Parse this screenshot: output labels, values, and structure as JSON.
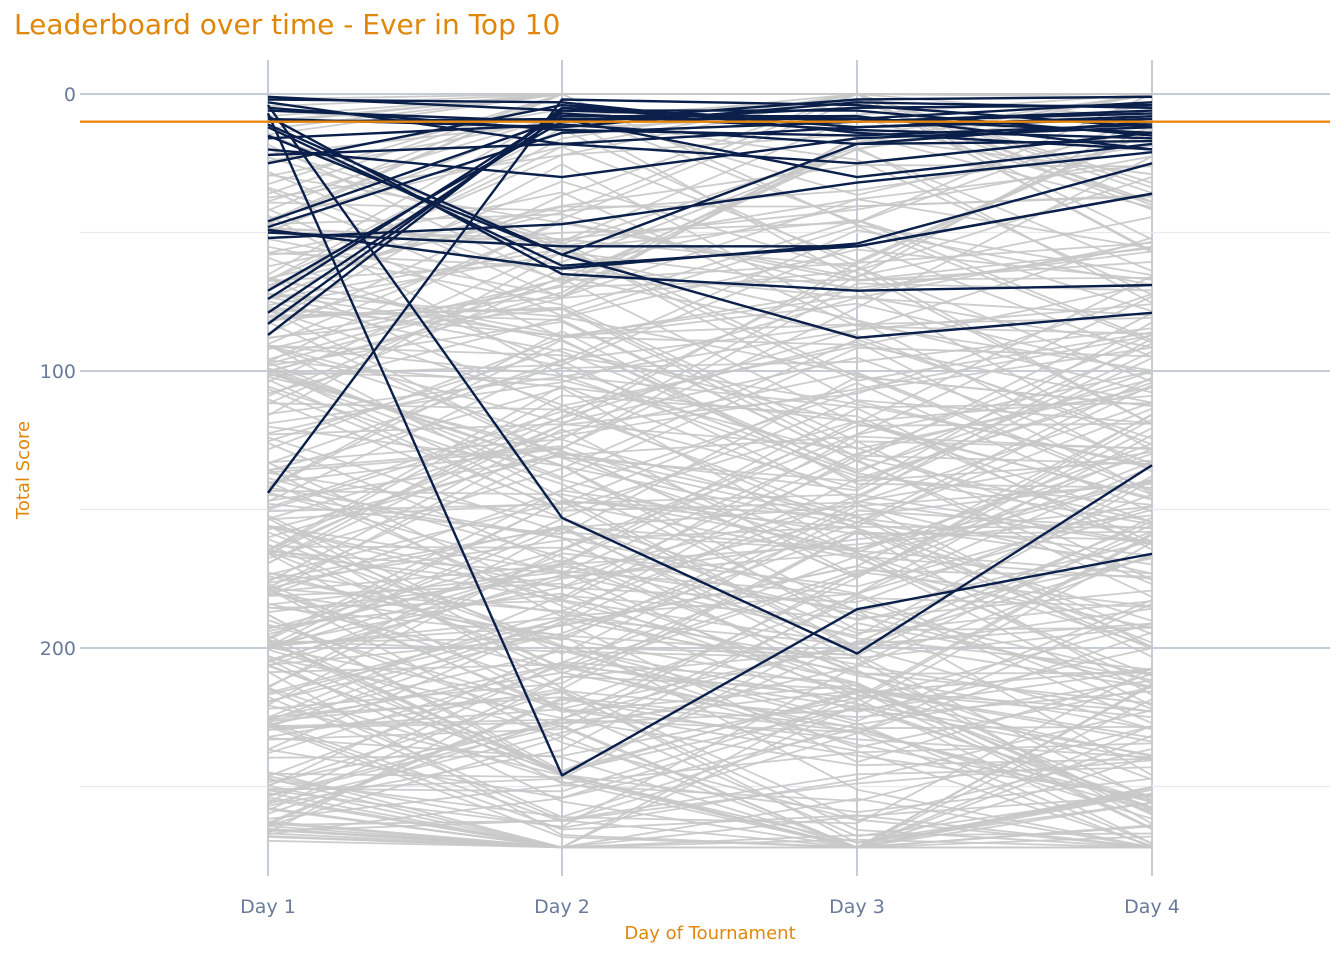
{
  "title": "Leaderboard over time - Ever in Top 10",
  "chart_data": {
    "type": "line",
    "title": "Leaderboard over time - Ever in Top 10",
    "xlabel": "Day of Tournament",
    "ylabel": "Total Score",
    "categories": [
      "Day 1",
      "Day 2",
      "Day 3",
      "Day 4"
    ],
    "y_ticks": [
      0,
      100,
      200
    ],
    "ylim": [
      0,
      272
    ],
    "y_reversed": true,
    "grid": true,
    "reference_line": {
      "y": 10,
      "color": "#e8870e"
    },
    "highlight_color": "#0a1f4a",
    "background_color": "#c8c8c8",
    "axis_label_color": "#e0870b",
    "tick_label_color": "#6a7a9b",
    "highlighted_series": [
      [
        3,
        18,
        12,
        8
      ],
      [
        6,
        10,
        5,
        4
      ],
      [
        9,
        12,
        3,
        5
      ],
      [
        12,
        62,
        55,
        36
      ],
      [
        15,
        58,
        18,
        10
      ],
      [
        20,
        30,
        16,
        12
      ],
      [
        22,
        18,
        25,
        14
      ],
      [
        1,
        6,
        9,
        3
      ],
      [
        2,
        3,
        14,
        20
      ],
      [
        50,
        55,
        55,
        36
      ],
      [
        52,
        47,
        32,
        21
      ],
      [
        46,
        9,
        9,
        14
      ],
      [
        48,
        14,
        10,
        7
      ],
      [
        71,
        10,
        2,
        1
      ],
      [
        74,
        7,
        13,
        16
      ],
      [
        79,
        8,
        8,
        20
      ],
      [
        83,
        6,
        6,
        15
      ],
      [
        87,
        5,
        10,
        6
      ],
      [
        5,
        13,
        15,
        11
      ],
      [
        144,
        2,
        4,
        12
      ],
      [
        4,
        153,
        202,
        134
      ],
      [
        7,
        246,
        186,
        166
      ],
      [
        8,
        65,
        71,
        69
      ],
      [
        11,
        58,
        88,
        79
      ],
      [
        49,
        63,
        54,
        25
      ],
      [
        10,
        9,
        30,
        18
      ],
      [
        16,
        11,
        18,
        17
      ],
      [
        25,
        4,
        12,
        9
      ]
    ],
    "background_series_count": 300,
    "background_value_range": [
      0,
      272
    ]
  }
}
